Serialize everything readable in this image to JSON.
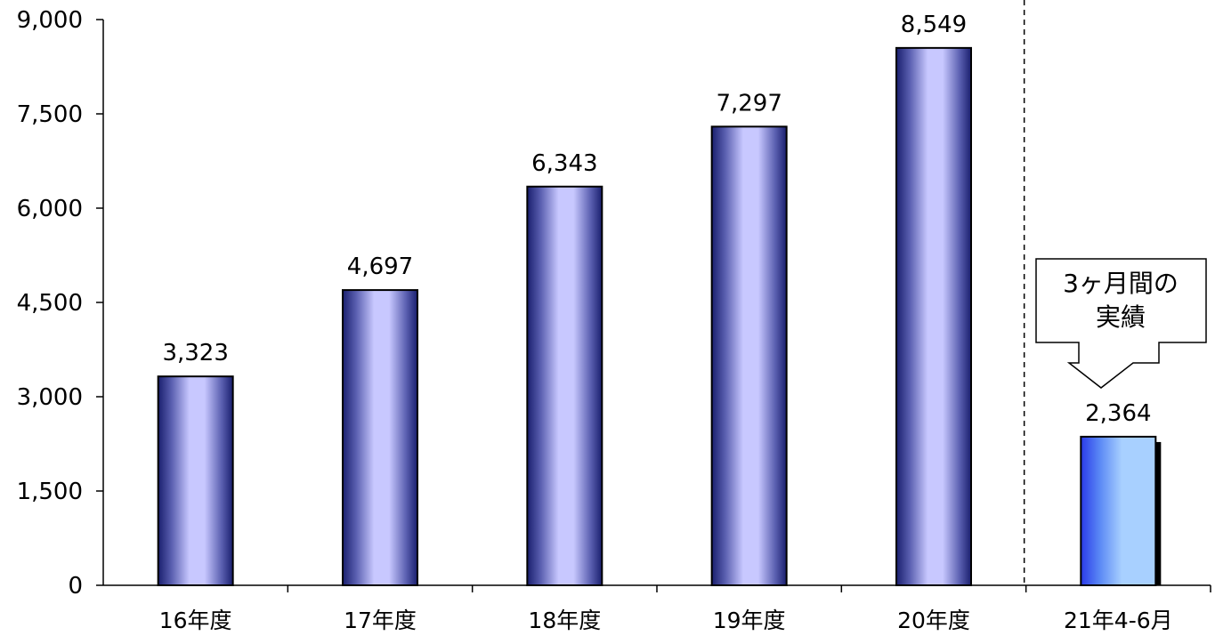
{
  "chart_data": {
    "type": "bar",
    "categories": [
      "16年度",
      "17年度",
      "18年度",
      "19年度",
      "20年度",
      "21年4-6月"
    ],
    "values": [
      3323,
      4697,
      6343,
      7297,
      8549,
      2364
    ],
    "data_labels": [
      "3,323",
      "4,697",
      "6,343",
      "7,297",
      "8,549",
      "2,364"
    ],
    "ylim": [
      0,
      9000
    ],
    "yticks": [
      0,
      1500,
      3000,
      4500,
      6000,
      7500,
      9000
    ],
    "ytick_labels": [
      "0",
      "1,500",
      "3,000",
      "4,500",
      "6,000",
      "7,500",
      "9,000"
    ],
    "title": "",
    "xlabel": "",
    "ylabel": "",
    "grid": false,
    "legend": "none",
    "separator_before_category_index": 5,
    "annotation": {
      "line1": "3ヶ月間の",
      "line2": "実績",
      "target_category": "21年4-6月"
    },
    "colors": {
      "bar_edge": "#1a1f6e",
      "bar_center": "#c8c8ff",
      "highlight_edge": "#2a3ae8",
      "highlight_center": "#a8d0ff"
    }
  }
}
